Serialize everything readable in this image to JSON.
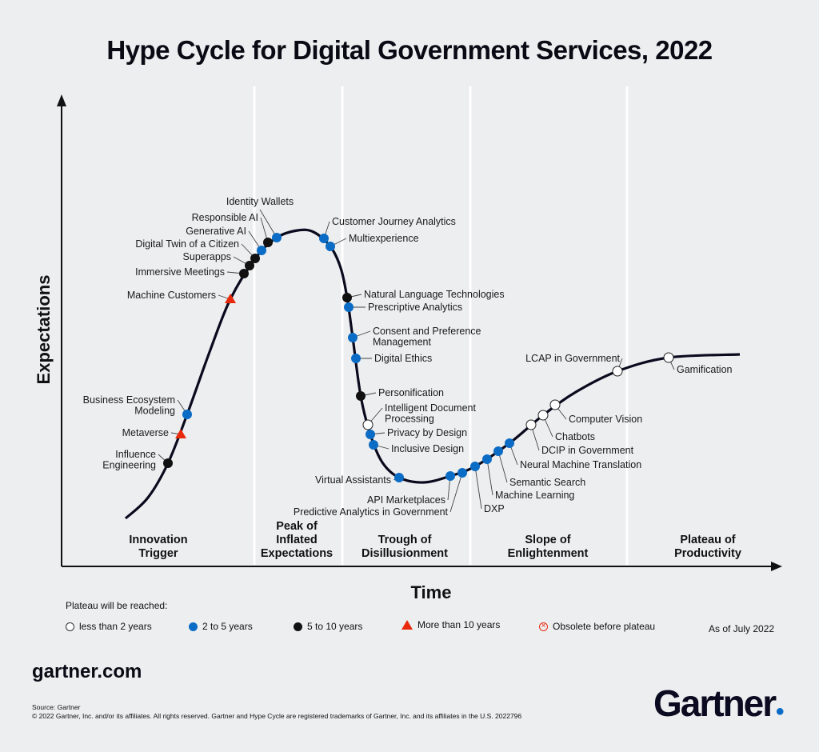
{
  "colors": {
    "less_than_2": "#ffffff",
    "two_to_5": "#0b6cc5",
    "five_to_10": "#111111",
    "more_than_10": "#e8290b",
    "obsolete": "#e8290b",
    "curve": "#0a0a1e",
    "divider": "#ffffff"
  },
  "chart_data": {
    "type": "scatter",
    "title": "Hype Cycle for Digital Government Services, 2022",
    "xlabel": "Time",
    "ylabel": "Expectations",
    "grid": false,
    "phases": [
      "Innovation Trigger",
      "Peak of Inflated Expectations",
      "Trough of Disillusionment",
      "Slope of Enlightenment",
      "Plateau of Productivity"
    ],
    "phase_lines": [
      [
        "Innovation",
        "Trigger"
      ],
      [
        "Peak of",
        "Inflated",
        "Expectations"
      ],
      [
        "Trough of",
        "Disillusionment"
      ],
      [
        "Slope of",
        "Enlightenment"
      ],
      [
        "Plateau of",
        "Productivity"
      ]
    ],
    "legend": {
      "title": "Plateau will be reached:",
      "items": [
        {
          "key": "lt2",
          "label": "less than 2 years"
        },
        {
          "key": "2to5",
          "label": "2 to 5 years"
        },
        {
          "key": "5to10",
          "label": "5 to 10 years"
        },
        {
          "key": "gt10",
          "label": "More than 10 years"
        },
        {
          "key": "obsolete",
          "label": "Obsolete before plateau"
        }
      ],
      "placement": "bottom"
    },
    "as_of": "As of July 2022",
    "points": [
      {
        "name": "Influence Engineering",
        "lines": [
          "Influence",
          "Engineering"
        ],
        "plateau": "5to10",
        "phase": "Innovation Trigger"
      },
      {
        "name": "Metaverse",
        "lines": [
          "Metaverse"
        ],
        "plateau": "gt10",
        "phase": "Innovation Trigger"
      },
      {
        "name": "Business Ecosystem Modeling",
        "lines": [
          "Business Ecosystem",
          "Modeling"
        ],
        "plateau": "2to5",
        "phase": "Innovation Trigger"
      },
      {
        "name": "Machine Customers",
        "lines": [
          "Machine Customers"
        ],
        "plateau": "gt10",
        "phase": "Innovation Trigger"
      },
      {
        "name": "Immersive Meetings",
        "lines": [
          "Immersive Meetings"
        ],
        "plateau": "5to10",
        "phase": "Innovation Trigger"
      },
      {
        "name": "Superapps",
        "lines": [
          "Superapps"
        ],
        "plateau": "5to10",
        "phase": "Innovation Trigger"
      },
      {
        "name": "Digital Twin of a Citizen",
        "lines": [
          "Digital Twin of a Citizen"
        ],
        "plateau": "5to10",
        "phase": "Peak of Inflated Expectations"
      },
      {
        "name": "Generative AI",
        "lines": [
          "Generative AI"
        ],
        "plateau": "2to5",
        "phase": "Peak of Inflated Expectations"
      },
      {
        "name": "Responsible AI",
        "lines": [
          "Responsible AI"
        ],
        "plateau": "5to10",
        "phase": "Peak of Inflated Expectations"
      },
      {
        "name": "Identity Wallets",
        "lines": [
          "Identity Wallets"
        ],
        "plateau": "2to5",
        "phase": "Peak of Inflated Expectations"
      },
      {
        "name": "Customer Journey Analytics",
        "lines": [
          "Customer Journey Analytics"
        ],
        "plateau": "2to5",
        "phase": "Peak of Inflated Expectations"
      },
      {
        "name": "Multiexperience",
        "lines": [
          "Multiexperience"
        ],
        "plateau": "2to5",
        "phase": "Peak of Inflated Expectations"
      },
      {
        "name": "Natural Language Technologies",
        "lines": [
          "Natural Language Technologies"
        ],
        "plateau": "5to10",
        "phase": "Trough of Disillusionment"
      },
      {
        "name": "Prescriptive Analytics",
        "lines": [
          "Prescriptive Analytics"
        ],
        "plateau": "2to5",
        "phase": "Trough of Disillusionment"
      },
      {
        "name": "Consent and Preference Management",
        "lines": [
          "Consent and Preference",
          "Management"
        ],
        "plateau": "2to5",
        "phase": "Trough of Disillusionment"
      },
      {
        "name": "Digital Ethics",
        "lines": [
          "Digital Ethics"
        ],
        "plateau": "2to5",
        "phase": "Trough of Disillusionment"
      },
      {
        "name": "Personification",
        "lines": [
          "Personification"
        ],
        "plateau": "5to10",
        "phase": "Trough of Disillusionment"
      },
      {
        "name": "Intelligent Document Processing",
        "lines": [
          "Intelligent Document",
          "Processing"
        ],
        "plateau": "lt2",
        "phase": "Trough of Disillusionment"
      },
      {
        "name": "Privacy by Design",
        "lines": [
          "Privacy by Design"
        ],
        "plateau": "2to5",
        "phase": "Trough of Disillusionment"
      },
      {
        "name": "Inclusive Design",
        "lines": [
          "Inclusive Design"
        ],
        "plateau": "2to5",
        "phase": "Trough of Disillusionment"
      },
      {
        "name": "Virtual Assistants",
        "lines": [
          "Virtual Assistants"
        ],
        "plateau": "2to5",
        "phase": "Trough of Disillusionment"
      },
      {
        "name": "API Marketplaces",
        "lines": [
          "API Marketplaces"
        ],
        "plateau": "2to5",
        "phase": "Trough of Disillusionment"
      },
      {
        "name": "Predictive Analytics in Government",
        "lines": [
          "Predictive Analytics in Government"
        ],
        "plateau": "2to5",
        "phase": "Trough of Disillusionment"
      },
      {
        "name": "DXP",
        "lines": [
          "DXP"
        ],
        "plateau": "2to5",
        "phase": "Slope of Enlightenment"
      },
      {
        "name": "Machine Learning",
        "lines": [
          "Machine Learning"
        ],
        "plateau": "2to5",
        "phase": "Slope of Enlightenment"
      },
      {
        "name": "Semantic Search",
        "lines": [
          "Semantic Search"
        ],
        "plateau": "2to5",
        "phase": "Slope of Enlightenment"
      },
      {
        "name": "Neural Machine Translation",
        "lines": [
          "Neural Machine Translation"
        ],
        "plateau": "2to5",
        "phase": "Slope of Enlightenment"
      },
      {
        "name": "DCIP in Government",
        "lines": [
          "DCIP in Government"
        ],
        "plateau": "lt2",
        "phase": "Slope of Enlightenment"
      },
      {
        "name": "Chatbots",
        "lines": [
          "Chatbots"
        ],
        "plateau": "lt2",
        "phase": "Slope of Enlightenment"
      },
      {
        "name": "Computer Vision",
        "lines": [
          "Computer Vision"
        ],
        "plateau": "lt2",
        "phase": "Slope of Enlightenment"
      },
      {
        "name": "LCAP in Government",
        "lines": [
          "LCAP in Government"
        ],
        "plateau": "lt2",
        "phase": "Slope of Enlightenment"
      },
      {
        "name": "Gamification",
        "lines": [
          "Gamification"
        ],
        "plateau": "lt2",
        "phase": "Plateau of Productivity"
      }
    ]
  },
  "footer": {
    "site": "gartner.com",
    "source": "Source: Gartner",
    "copyright": "© 2022 Gartner, Inc. and/or its affiliates. All rights reserved. Gartner and Hype Cycle are registered trademarks of Gartner, Inc. and its affiliates in the U.S. 2022796",
    "logo": "Gartner"
  }
}
